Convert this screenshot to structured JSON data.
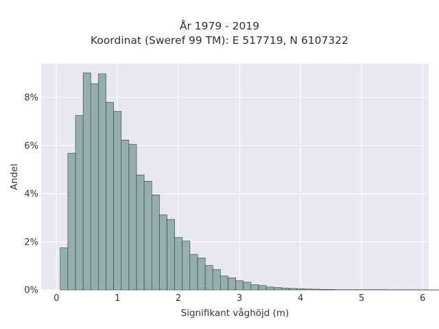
{
  "chart_data": {
    "type": "bar",
    "title_lines": [
      "År 1979 - 2019",
      "Koordinat (Sweref 99 TM): E 517719, N 6107322"
    ],
    "xlabel": "Signifikant våghöjd (m)",
    "ylabel": "Andel",
    "xlim": [
      -0.25,
      6.1
    ],
    "ylim": [
      0,
      9.4
    ],
    "x_ticks": [
      0,
      1,
      2,
      3,
      4,
      5,
      6
    ],
    "x_tick_labels": [
      "0",
      "1",
      "2",
      "3",
      "4",
      "5",
      "6"
    ],
    "y_ticks": [
      0,
      2,
      4,
      6,
      8
    ],
    "y_tick_labels": [
      "0%",
      "2%",
      "4%",
      "6%",
      "8%"
    ],
    "grid": true,
    "bin_width": 0.125,
    "bin_start": 0.0625,
    "values": [
      1.75,
      5.68,
      7.25,
      9.02,
      8.57,
      8.98,
      7.8,
      7.42,
      6.23,
      6.05,
      4.78,
      4.52,
      3.95,
      3.12,
      2.93,
      2.18,
      2.03,
      1.48,
      1.33,
      1.02,
      0.85,
      0.58,
      0.5,
      0.38,
      0.32,
      0.22,
      0.18,
      0.12,
      0.1,
      0.08,
      0.06,
      0.05,
      0.04,
      0.03,
      0.02,
      0.02,
      0.01,
      0.01,
      0.01,
      0.01,
      0.01,
      0.01,
      0.01,
      0.005,
      0.005,
      0.005,
      0.005,
      0.005,
      0.005,
      0.005,
      0.005,
      0.005,
      0.005,
      0.005,
      0.005,
      0.005
    ],
    "colors": {
      "bar_fill": "#95aeae",
      "bar_edge": "#2f3b3b",
      "plot_background": "#e8e8f1",
      "grid": "#ffffff"
    }
  }
}
